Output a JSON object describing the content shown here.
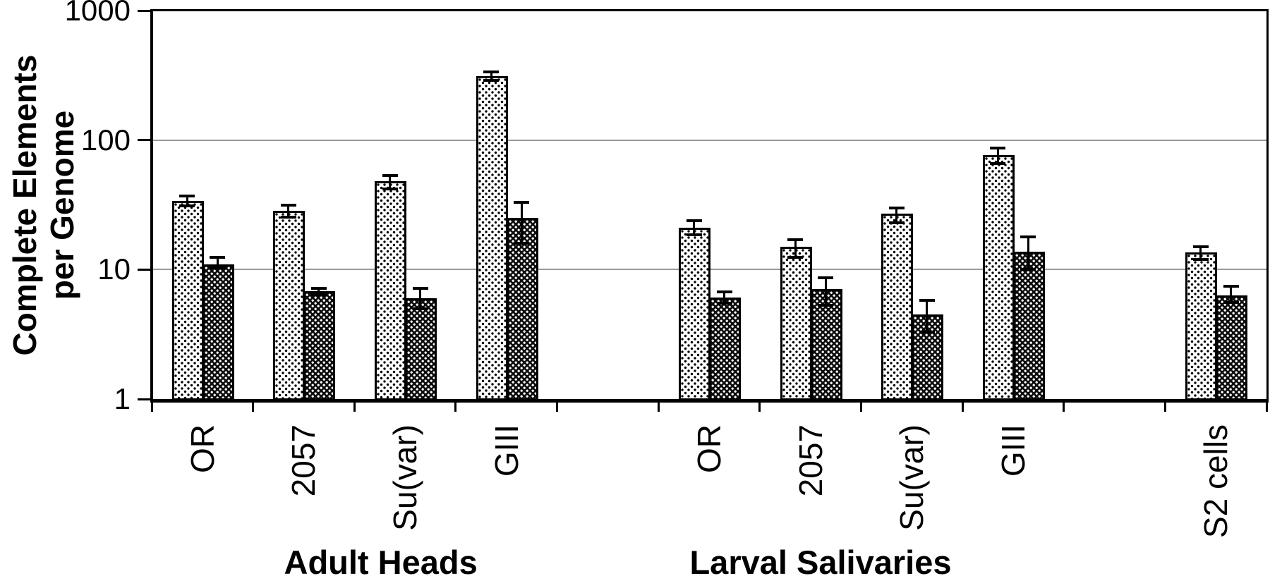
{
  "figure_type": "scientific bar chart (log scale, two patterned series, error bars)",
  "colors": {
    "background": "#ffffff",
    "bars_and_axes": "#000000",
    "gridline": "#9a9a9a",
    "light_bar_pattern": "black stipple dots on white",
    "dark_bar_pattern": "white dots on black trellis"
  },
  "chart_data": {
    "type": "bar",
    "title": "",
    "xlabel": "",
    "ylabel": "Complete Elements per Genome",
    "ylabel_lines": [
      "Complete Elements",
      "per Genome"
    ],
    "y_scale": "log",
    "ylim": [
      1,
      1000
    ],
    "y_ticks": [
      1000,
      100,
      10,
      1
    ],
    "y_tick_labels": [
      "1000",
      "100",
      "10",
      "1"
    ],
    "grid": "horizontal gridlines at decades",
    "legend": "none",
    "n_slots": 11,
    "categories": [
      {
        "label": "OR",
        "group": "Adult Heads",
        "slot": 0
      },
      {
        "label": "2057",
        "group": "Adult Heads",
        "slot": 1
      },
      {
        "label": "Su(var)",
        "group": "Adult Heads",
        "slot": 2
      },
      {
        "label": "GIII",
        "group": "Adult Heads",
        "slot": 3
      },
      {
        "label": "OR",
        "group": "Larval Salivaries",
        "slot": 5
      },
      {
        "label": "2057",
        "group": "Larval Salivaries",
        "slot": 6
      },
      {
        "label": "Su(var)",
        "group": "Larval Salivaries",
        "slot": 7
      },
      {
        "label": "GIII",
        "group": "Larval Salivaries",
        "slot": 8
      },
      {
        "label": "S2 cells",
        "group": "",
        "slot": 10
      }
    ],
    "series": [
      {
        "name": "light-stippled-bars",
        "pattern": "dot-grid",
        "values": [
          34,
          28.5,
          48,
          310,
          21,
          15,
          27,
          77,
          13.5
        ],
        "err_hi": [
          37,
          31.5,
          53,
          335,
          24,
          17,
          30,
          87,
          15
        ],
        "err_lo": [
          31,
          25.5,
          42,
          288,
          18.5,
          12.5,
          23,
          66,
          12
        ]
      },
      {
        "name": "dark-crosshatch-bars",
        "pattern": "diagonal-lattice",
        "values": [
          11,
          6.8,
          6.0,
          25,
          6.1,
          7.1,
          4.5,
          13.7,
          6.3
        ],
        "err_hi": [
          12.5,
          7.2,
          7.2,
          33,
          6.7,
          8.6,
          5.8,
          17.8,
          7.4
        ],
        "err_lo": [
          10.3,
          6.4,
          5.0,
          16,
          5.5,
          5.3,
          3.3,
          10,
          5.6
        ]
      }
    ],
    "group_labels": [
      {
        "text": "Adult Heads",
        "u": 2.26
      },
      {
        "text": "Larval Salivaries",
        "u": 6.6
      }
    ]
  }
}
